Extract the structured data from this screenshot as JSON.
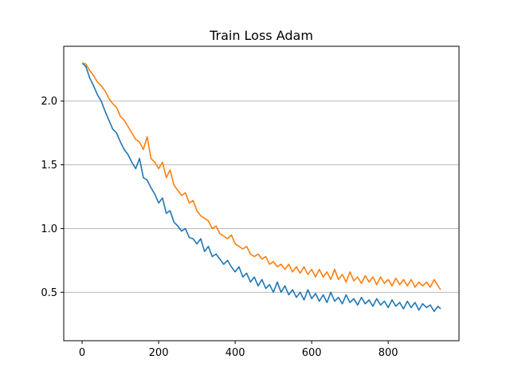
{
  "chart_data": {
    "type": "line",
    "title": "Train Loss Adam",
    "xlabel": "",
    "ylabel": "",
    "xlim": [
      -48,
      985
    ],
    "ylim": [
      0.12,
      2.43
    ],
    "x_ticks": [
      0,
      200,
      400,
      600,
      800
    ],
    "y_ticks": [
      0.5,
      1.0,
      1.5,
      2.0
    ],
    "x_tick_labels": [
      "0",
      "200",
      "400",
      "600",
      "800"
    ],
    "y_tick_labels": [
      "0.5",
      "1.0",
      "1.5",
      "2.0"
    ],
    "grid": {
      "axis": "y",
      "on": true
    },
    "legend": "none",
    "series": [
      {
        "color": "#1f77b4",
        "x": [
          0,
          10,
          20,
          30,
          40,
          50,
          60,
          70,
          80,
          90,
          100,
          110,
          120,
          130,
          140,
          150,
          160,
          170,
          180,
          190,
          200,
          210,
          220,
          230,
          240,
          250,
          260,
          270,
          280,
          290,
          300,
          310,
          320,
          330,
          340,
          350,
          360,
          370,
          380,
          390,
          400,
          410,
          420,
          430,
          440,
          450,
          460,
          470,
          480,
          490,
          500,
          510,
          520,
          530,
          540,
          550,
          560,
          570,
          580,
          590,
          600,
          610,
          620,
          630,
          640,
          650,
          660,
          670,
          680,
          690,
          700,
          710,
          720,
          730,
          740,
          750,
          760,
          770,
          780,
          790,
          800,
          810,
          820,
          830,
          840,
          850,
          860,
          870,
          880,
          890,
          900,
          910,
          920,
          930,
          937
        ],
        "values": [
          2.3,
          2.27,
          2.18,
          2.12,
          2.05,
          2.0,
          1.92,
          1.85,
          1.78,
          1.75,
          1.68,
          1.62,
          1.58,
          1.52,
          1.47,
          1.55,
          1.4,
          1.38,
          1.32,
          1.27,
          1.2,
          1.24,
          1.12,
          1.14,
          1.05,
          1.02,
          0.98,
          1.0,
          0.93,
          0.92,
          0.88,
          0.92,
          0.82,
          0.86,
          0.78,
          0.8,
          0.76,
          0.72,
          0.75,
          0.7,
          0.66,
          0.7,
          0.62,
          0.65,
          0.58,
          0.62,
          0.55,
          0.6,
          0.53,
          0.56,
          0.5,
          0.58,
          0.5,
          0.55,
          0.48,
          0.52,
          0.46,
          0.5,
          0.44,
          0.52,
          0.45,
          0.49,
          0.43,
          0.48,
          0.42,
          0.5,
          0.43,
          0.46,
          0.41,
          0.48,
          0.42,
          0.45,
          0.4,
          0.46,
          0.41,
          0.44,
          0.39,
          0.45,
          0.4,
          0.43,
          0.38,
          0.44,
          0.39,
          0.42,
          0.37,
          0.43,
          0.38,
          0.42,
          0.36,
          0.41,
          0.38,
          0.4,
          0.35,
          0.39,
          0.37
        ]
      },
      {
        "color": "#ff7f0e",
        "x": [
          0,
          10,
          20,
          30,
          40,
          50,
          60,
          70,
          80,
          90,
          100,
          110,
          120,
          130,
          140,
          150,
          160,
          170,
          180,
          190,
          200,
          210,
          220,
          230,
          240,
          250,
          260,
          270,
          280,
          290,
          300,
          310,
          320,
          330,
          340,
          350,
          360,
          370,
          380,
          390,
          400,
          410,
          420,
          430,
          440,
          450,
          460,
          470,
          480,
          490,
          500,
          510,
          520,
          530,
          540,
          550,
          560,
          570,
          580,
          590,
          600,
          610,
          620,
          630,
          640,
          650,
          660,
          670,
          680,
          690,
          700,
          710,
          720,
          730,
          740,
          750,
          760,
          770,
          780,
          790,
          800,
          810,
          820,
          830,
          840,
          850,
          860,
          870,
          880,
          890,
          900,
          910,
          920,
          930,
          937
        ],
        "values": [
          2.3,
          2.29,
          2.24,
          2.2,
          2.15,
          2.12,
          2.08,
          2.02,
          1.98,
          1.95,
          1.88,
          1.85,
          1.8,
          1.75,
          1.7,
          1.68,
          1.62,
          1.72,
          1.55,
          1.52,
          1.47,
          1.52,
          1.4,
          1.46,
          1.34,
          1.3,
          1.26,
          1.28,
          1.2,
          1.22,
          1.14,
          1.1,
          1.08,
          1.06,
          1.0,
          1.02,
          0.96,
          0.94,
          0.92,
          0.95,
          0.88,
          0.86,
          0.84,
          0.86,
          0.8,
          0.78,
          0.8,
          0.76,
          0.78,
          0.72,
          0.74,
          0.7,
          0.72,
          0.68,
          0.72,
          0.66,
          0.7,
          0.65,
          0.7,
          0.64,
          0.68,
          0.62,
          0.68,
          0.62,
          0.66,
          0.6,
          0.68,
          0.6,
          0.64,
          0.58,
          0.66,
          0.59,
          0.62,
          0.57,
          0.63,
          0.58,
          0.62,
          0.56,
          0.62,
          0.57,
          0.6,
          0.55,
          0.61,
          0.56,
          0.6,
          0.55,
          0.6,
          0.54,
          0.58,
          0.55,
          0.58,
          0.54,
          0.6,
          0.55,
          0.52
        ]
      }
    ]
  }
}
